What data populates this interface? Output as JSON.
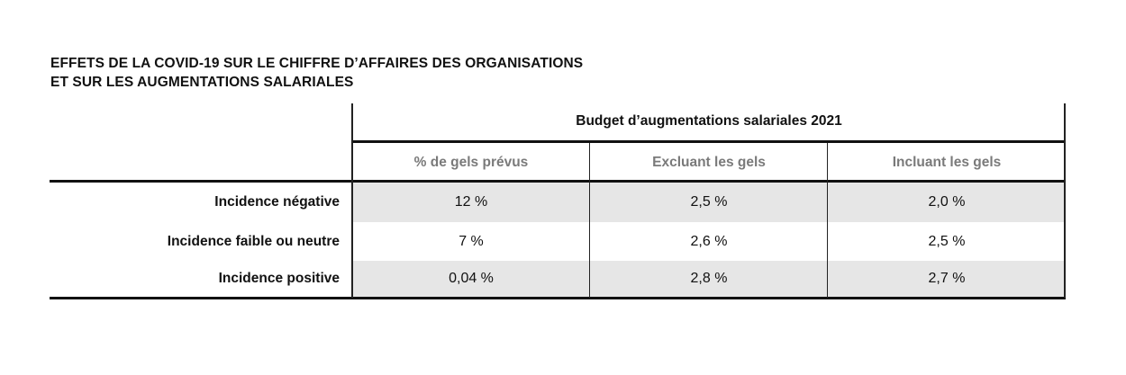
{
  "title": {
    "line1": "EFFETS DE LA COVID-19 SUR LE CHIFFRE D’AFFAIRES DES ORGANISATIONS",
    "line2": "ET SUR LES AUGMENTATIONS SALARIALES"
  },
  "table": {
    "group_header": "Budget d’augmentations salariales 2021",
    "columns": [
      "% de gels prévus",
      "Excluant les gels",
      "Incluant les gels"
    ],
    "rows": [
      {
        "label": "Incidence négative",
        "values": [
          "12 %",
          "2,5 %",
          "2,0 %"
        ],
        "shaded": true
      },
      {
        "label": "Incidence faible ou neutre",
        "values": [
          "7 %",
          "2,6 %",
          "2,5 %"
        ],
        "shaded": false
      },
      {
        "label": "Incidence positive",
        "values": [
          "0,04 %",
          "2,8 %",
          "2,7 %"
        ],
        "shaded": true
      }
    ]
  },
  "colors": {
    "row_shade": "#e6e6e6",
    "column_header_text": "#7a7a7a",
    "rule": "#111111"
  }
}
